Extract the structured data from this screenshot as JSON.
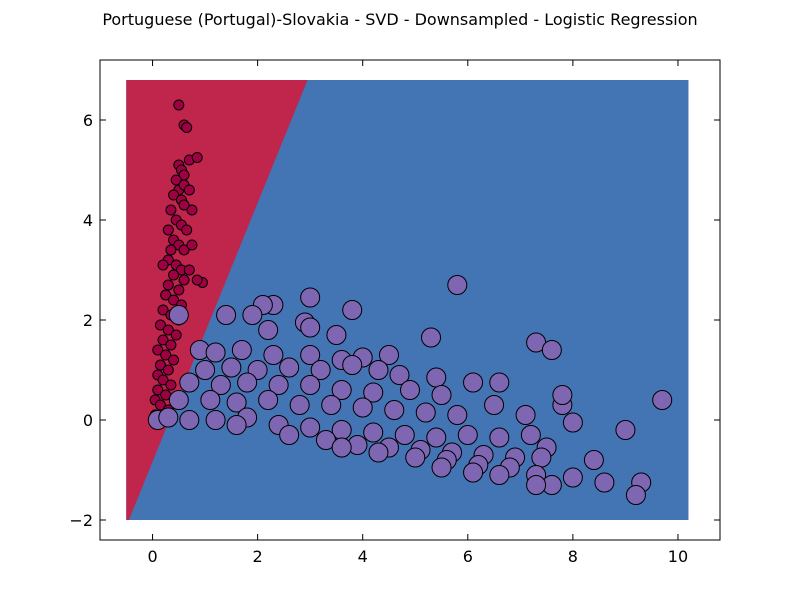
{
  "chart_data": {
    "type": "scatter",
    "title": "Portuguese (Portugal)-Slovakia - SVD - Downsampled - Logistic Regression",
    "xlabel": "",
    "ylabel": "",
    "xlim": [
      -1,
      10.8
    ],
    "ylim": [
      -2.4,
      7.2
    ],
    "xticks": [
      0,
      2,
      4,
      6,
      8,
      10
    ],
    "yticks": [
      -2,
      0,
      2,
      4,
      6
    ],
    "ytick_labels": [
      "−2",
      "0",
      "2",
      "4",
      "6"
    ],
    "grid": false,
    "background_regions": [
      {
        "class": "Portuguese (Portugal)",
        "color": "#c0254b"
      },
      {
        "class": "Slovakia",
        "color": "#4374b3"
      }
    ],
    "decision_boundary": {
      "x": [
        -0.45,
        2.95
      ],
      "y": [
        -2,
        6.8
      ]
    },
    "region_extent": {
      "x": [
        -0.5,
        10.2
      ],
      "y": [
        -2,
        6.8
      ]
    },
    "series": [
      {
        "color": "#9e0142",
        "marker_size": "small",
        "points": [
          [
            0.5,
            6.3
          ],
          [
            0.6,
            5.9
          ],
          [
            0.65,
            5.85
          ],
          [
            0.7,
            5.2
          ],
          [
            0.85,
            5.25
          ],
          [
            0.5,
            5.1
          ],
          [
            0.55,
            5.0
          ],
          [
            0.6,
            4.9
          ],
          [
            0.45,
            4.8
          ],
          [
            0.5,
            4.6
          ],
          [
            0.6,
            4.7
          ],
          [
            0.4,
            4.5
          ],
          [
            0.55,
            4.4
          ],
          [
            0.7,
            4.6
          ],
          [
            0.75,
            4.2
          ],
          [
            0.35,
            4.2
          ],
          [
            0.6,
            4.3
          ],
          [
            0.45,
            4.0
          ],
          [
            0.55,
            3.9
          ],
          [
            0.3,
            3.8
          ],
          [
            0.65,
            3.8
          ],
          [
            0.4,
            3.6
          ],
          [
            0.5,
            3.5
          ],
          [
            0.35,
            3.4
          ],
          [
            0.6,
            3.4
          ],
          [
            0.75,
            3.5
          ],
          [
            0.3,
            3.2
          ],
          [
            0.45,
            3.1
          ],
          [
            0.55,
            3.0
          ],
          [
            0.2,
            3.1
          ],
          [
            0.7,
            3.0
          ],
          [
            0.4,
            2.9
          ],
          [
            0.3,
            2.7
          ],
          [
            0.6,
            2.8
          ],
          [
            0.5,
            2.6
          ],
          [
            0.25,
            2.5
          ],
          [
            0.4,
            2.4
          ],
          [
            0.55,
            2.3
          ],
          [
            0.2,
            2.2
          ],
          [
            0.35,
            2.1
          ],
          [
            0.5,
            2.0
          ],
          [
            0.15,
            1.9
          ],
          [
            0.3,
            1.8
          ],
          [
            0.45,
            1.7
          ],
          [
            0.2,
            1.6
          ],
          [
            0.35,
            1.5
          ],
          [
            0.1,
            1.4
          ],
          [
            0.25,
            1.3
          ],
          [
            0.4,
            1.2
          ],
          [
            0.15,
            1.1
          ],
          [
            0.3,
            1.0
          ],
          [
            0.1,
            0.9
          ],
          [
            0.2,
            0.8
          ],
          [
            0.35,
            0.7
          ],
          [
            0.1,
            0.6
          ],
          [
            0.25,
            0.5
          ],
          [
            0.05,
            0.4
          ],
          [
            0.15,
            0.3
          ],
          [
            0.3,
            0.2
          ],
          [
            0.05,
            0.1
          ],
          [
            0.95,
            2.75
          ],
          [
            0.85,
            2.8
          ]
        ]
      },
      {
        "color": "#7e66b3",
        "marker_size": "large",
        "points": [
          [
            5.8,
            2.7
          ],
          [
            3.0,
            2.45
          ],
          [
            2.3,
            2.3
          ],
          [
            2.1,
            2.3
          ],
          [
            3.8,
            2.2
          ],
          [
            1.4,
            2.1
          ],
          [
            1.9,
            2.1
          ],
          [
            0.5,
            2.1
          ],
          [
            2.9,
            1.95
          ],
          [
            2.2,
            1.8
          ],
          [
            3.0,
            1.85
          ],
          [
            3.5,
            1.7
          ],
          [
            5.3,
            1.65
          ],
          [
            7.3,
            1.55
          ],
          [
            7.6,
            1.4
          ],
          [
            0.9,
            1.4
          ],
          [
            1.2,
            1.35
          ],
          [
            1.7,
            1.4
          ],
          [
            2.3,
            1.3
          ],
          [
            3.0,
            1.3
          ],
          [
            3.6,
            1.2
          ],
          [
            4.0,
            1.25
          ],
          [
            4.5,
            1.3
          ],
          [
            1.0,
            1.0
          ],
          [
            1.5,
            1.05
          ],
          [
            2.0,
            1.0
          ],
          [
            2.6,
            1.05
          ],
          [
            3.2,
            1.0
          ],
          [
            3.8,
            1.1
          ],
          [
            4.3,
            1.0
          ],
          [
            4.7,
            0.9
          ],
          [
            5.4,
            0.85
          ],
          [
            0.7,
            0.75
          ],
          [
            1.3,
            0.7
          ],
          [
            1.8,
            0.75
          ],
          [
            2.4,
            0.7
          ],
          [
            3.0,
            0.7
          ],
          [
            3.6,
            0.6
          ],
          [
            4.2,
            0.55
          ],
          [
            4.9,
            0.6
          ],
          [
            5.5,
            0.5
          ],
          [
            6.1,
            0.75
          ],
          [
            6.6,
            0.75
          ],
          [
            0.5,
            0.4
          ],
          [
            1.1,
            0.4
          ],
          [
            1.6,
            0.35
          ],
          [
            2.2,
            0.4
          ],
          [
            2.8,
            0.3
          ],
          [
            3.4,
            0.3
          ],
          [
            4.0,
            0.25
          ],
          [
            4.6,
            0.2
          ],
          [
            5.2,
            0.15
          ],
          [
            5.8,
            0.1
          ],
          [
            6.5,
            0.3
          ],
          [
            7.1,
            0.1
          ],
          [
            7.8,
            0.3
          ],
          [
            7.8,
            0.5
          ],
          [
            9.7,
            0.4
          ],
          [
            0.1,
            0.0
          ],
          [
            0.3,
            0.05
          ],
          [
            0.7,
            0.0
          ],
          [
            1.2,
            0.0
          ],
          [
            1.8,
            0.05
          ],
          [
            2.4,
            -0.1
          ],
          [
            3.0,
            -0.15
          ],
          [
            3.6,
            -0.2
          ],
          [
            4.2,
            -0.25
          ],
          [
            4.8,
            -0.3
          ],
          [
            5.4,
            -0.35
          ],
          [
            6.0,
            -0.3
          ],
          [
            6.6,
            -0.35
          ],
          [
            7.2,
            -0.3
          ],
          [
            8.0,
            -0.05
          ],
          [
            9.0,
            -0.2
          ],
          [
            1.6,
            -0.1
          ],
          [
            2.6,
            -0.3
          ],
          [
            3.3,
            -0.4
          ],
          [
            3.9,
            -0.5
          ],
          [
            4.5,
            -0.55
          ],
          [
            5.1,
            -0.6
          ],
          [
            5.7,
            -0.65
          ],
          [
            6.3,
            -0.7
          ],
          [
            6.9,
            -0.75
          ],
          [
            7.5,
            -0.55
          ],
          [
            3.6,
            -0.55
          ],
          [
            4.3,
            -0.65
          ],
          [
            5.0,
            -0.75
          ],
          [
            5.6,
            -0.8
          ],
          [
            6.2,
            -0.9
          ],
          [
            6.8,
            -0.95
          ],
          [
            7.4,
            -0.75
          ],
          [
            8.4,
            -0.8
          ],
          [
            5.5,
            -0.95
          ],
          [
            6.1,
            -1.05
          ],
          [
            6.6,
            -1.1
          ],
          [
            7.3,
            -1.1
          ],
          [
            7.6,
            -1.3
          ],
          [
            8.0,
            -1.15
          ],
          [
            8.6,
            -1.25
          ],
          [
            7.3,
            -1.3
          ],
          [
            9.3,
            -1.25
          ],
          [
            9.2,
            -1.5
          ]
        ]
      }
    ]
  }
}
